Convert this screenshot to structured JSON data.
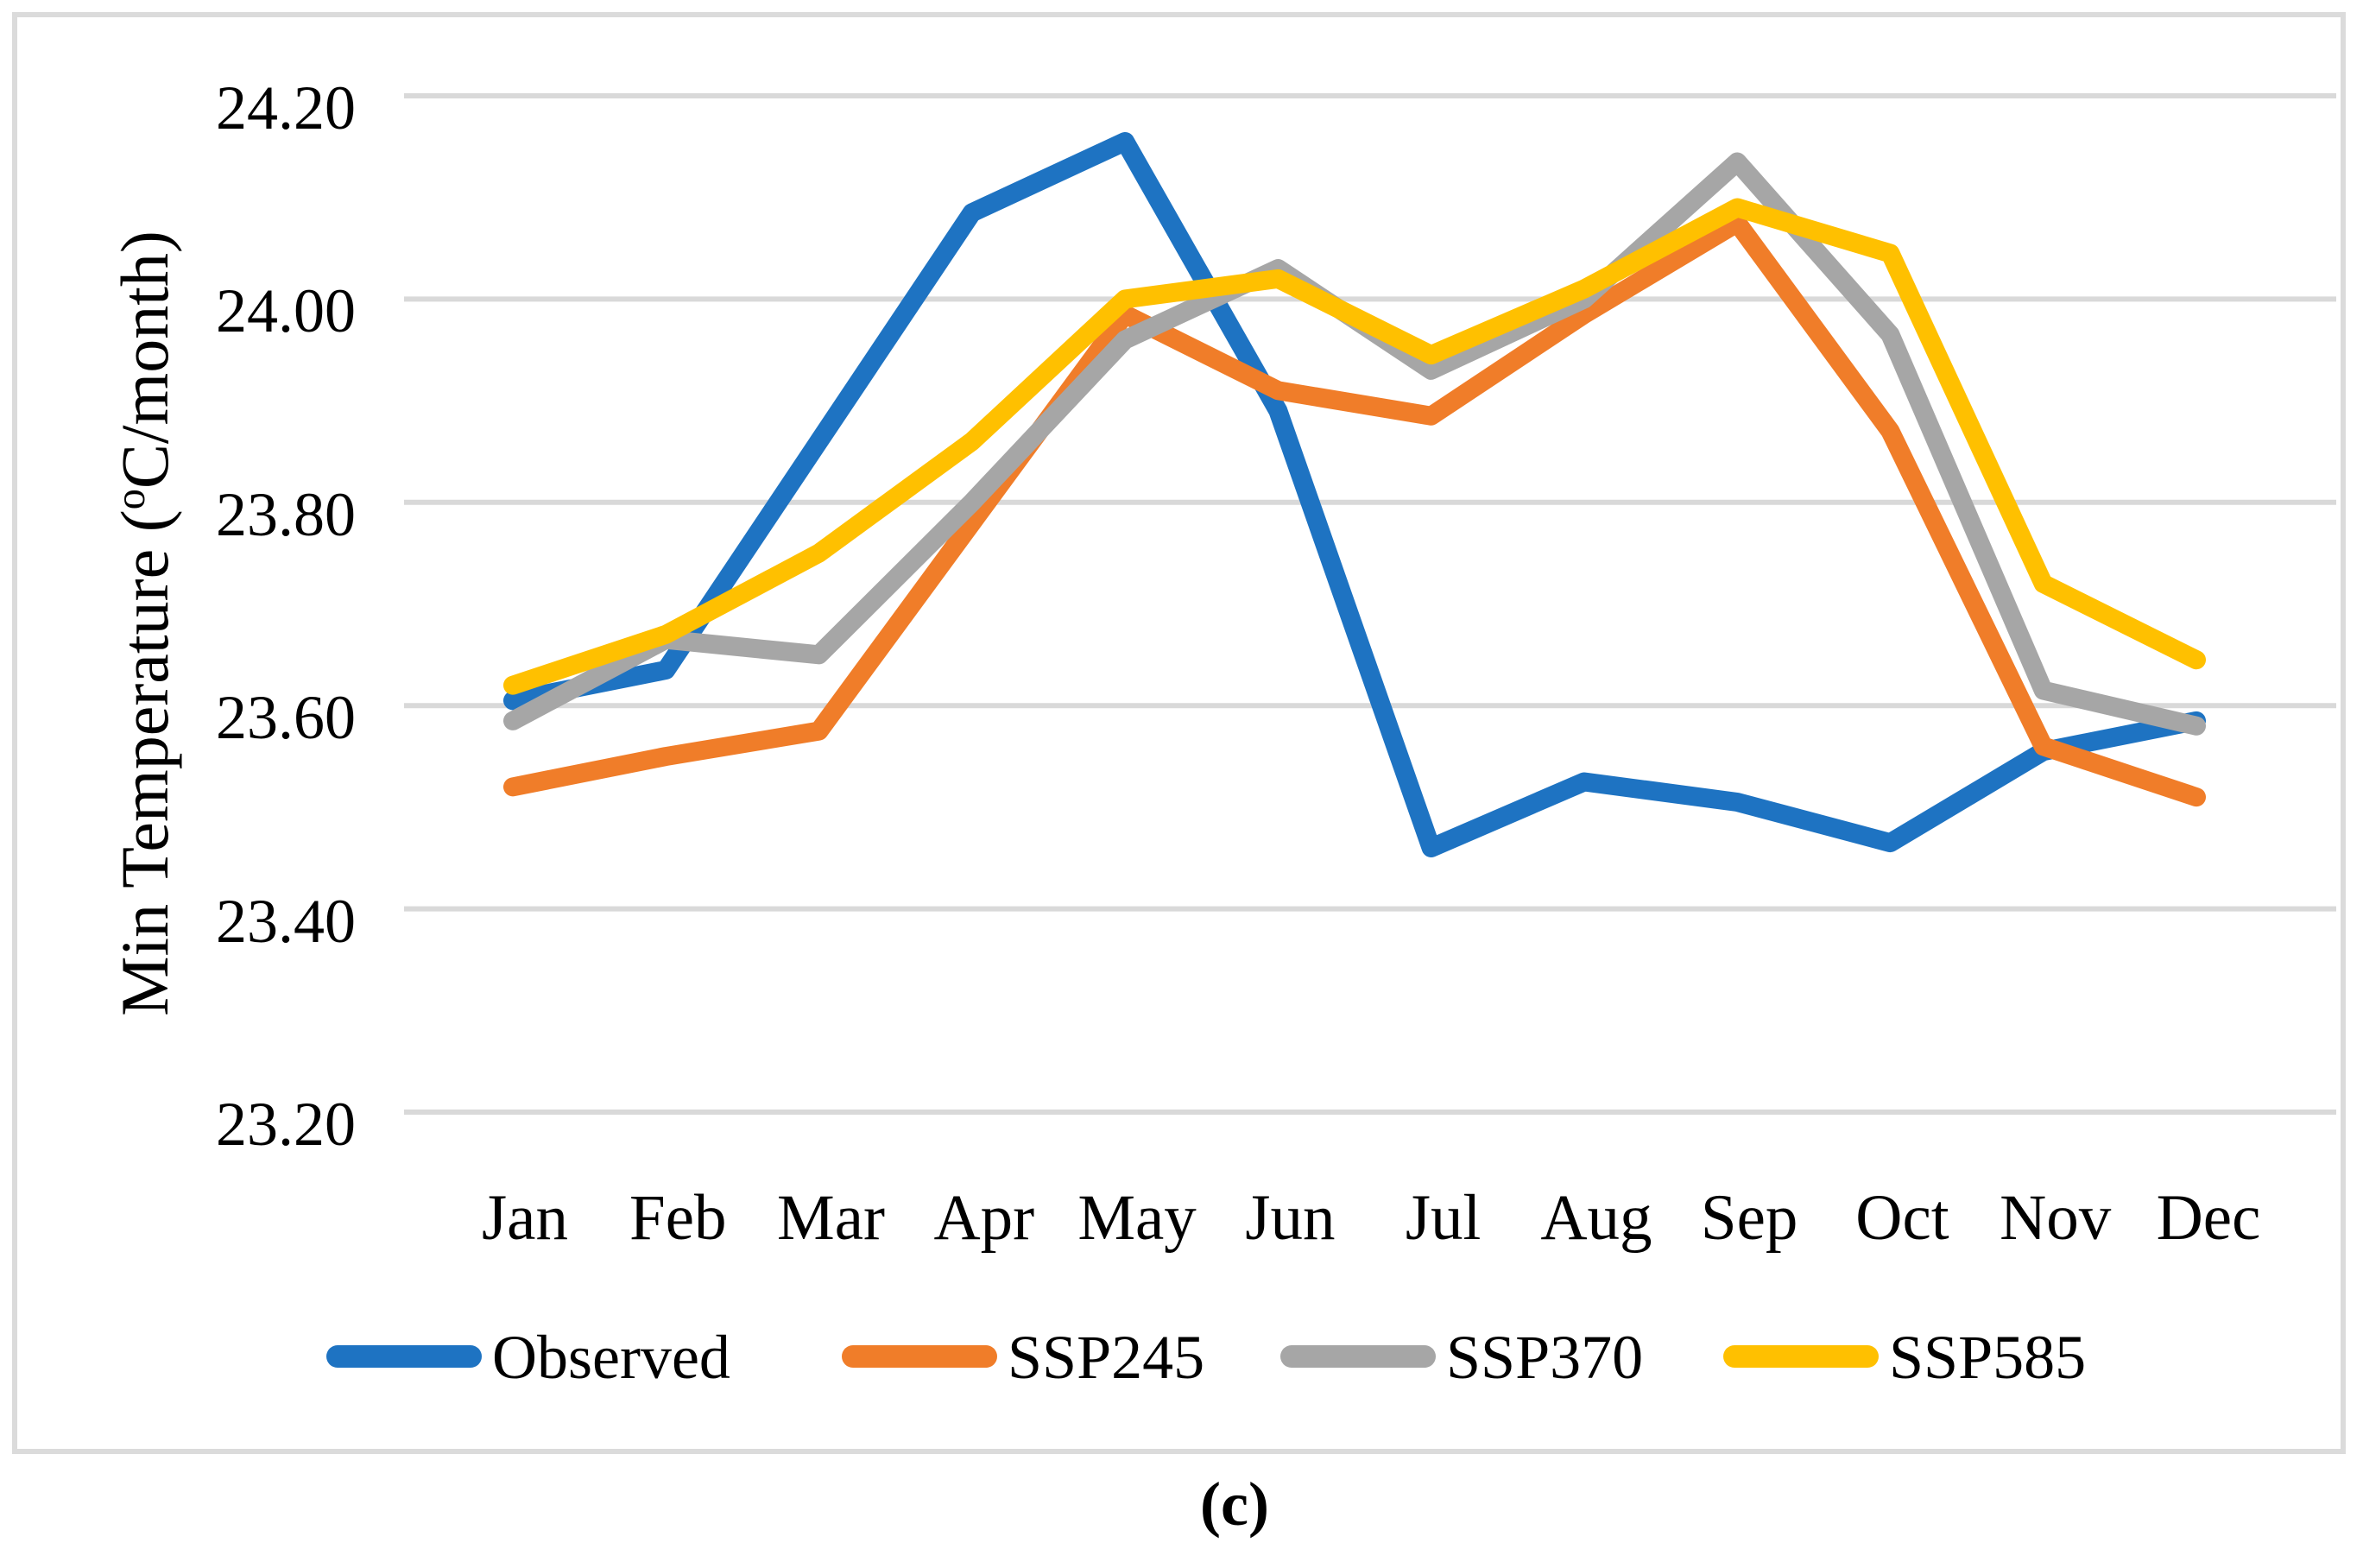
{
  "figure": {
    "caption": "(c)",
    "background_color": "#FFFFFF",
    "panel_border_color": "#DBDBDB",
    "gridline_color": "#D9D9D9"
  },
  "y_axis": {
    "title_prefix": "Min Temperature (",
    "title_degree": "o",
    "title_suffix": "C/month)",
    "tick_labels": [
      "24.20",
      "24.00",
      "23.80",
      "23.60",
      "23.40",
      "23.20"
    ],
    "tick_values": [
      24.2,
      24.0,
      23.8,
      23.6,
      23.4,
      23.2
    ]
  },
  "x_axis": {
    "tick_labels": [
      "Jan",
      "Feb",
      "Mar",
      "Apr",
      "May",
      "Jun",
      "Jul",
      "Aug",
      "Sep",
      "Oct",
      "Nov",
      "Dec"
    ]
  },
  "chart_data": {
    "type": "line",
    "title": "",
    "xlabel": "",
    "ylabel": "Min Temperature (oC/month)",
    "ylim": [
      23.2,
      24.2
    ],
    "y_step": 0.2,
    "grid": true,
    "legend_position": "bottom",
    "categories": [
      "Jan",
      "Feb",
      "Mar",
      "Apr",
      "May",
      "Jun",
      "Jul",
      "Aug",
      "Sep",
      "Oct",
      "Nov",
      "Dec"
    ],
    "series": [
      {
        "name": "Observed",
        "color": "#1E73C2",
        "values": [
          23.605,
          23.635,
          23.86,
          24.085,
          24.155,
          23.89,
          23.46,
          23.525,
          23.505,
          23.465,
          23.555,
          23.585
        ]
      },
      {
        "name": "SSP245",
        "color": "#F07D29",
        "values": [
          23.52,
          23.55,
          23.575,
          23.78,
          23.985,
          23.91,
          23.885,
          23.985,
          24.075,
          23.87,
          23.56,
          23.51
        ]
      },
      {
        "name": "SSP370",
        "color": "#A6A6A6",
        "values": [
          23.585,
          23.665,
          23.65,
          23.8,
          23.96,
          24.03,
          23.93,
          24.0,
          24.135,
          23.965,
          23.615,
          23.58
        ]
      },
      {
        "name": "SSP585",
        "color": "#FFC000",
        "values": [
          23.62,
          23.67,
          23.75,
          23.86,
          24.0,
          24.02,
          23.945,
          24.01,
          24.09,
          24.045,
          23.72,
          23.645
        ]
      }
    ]
  }
}
